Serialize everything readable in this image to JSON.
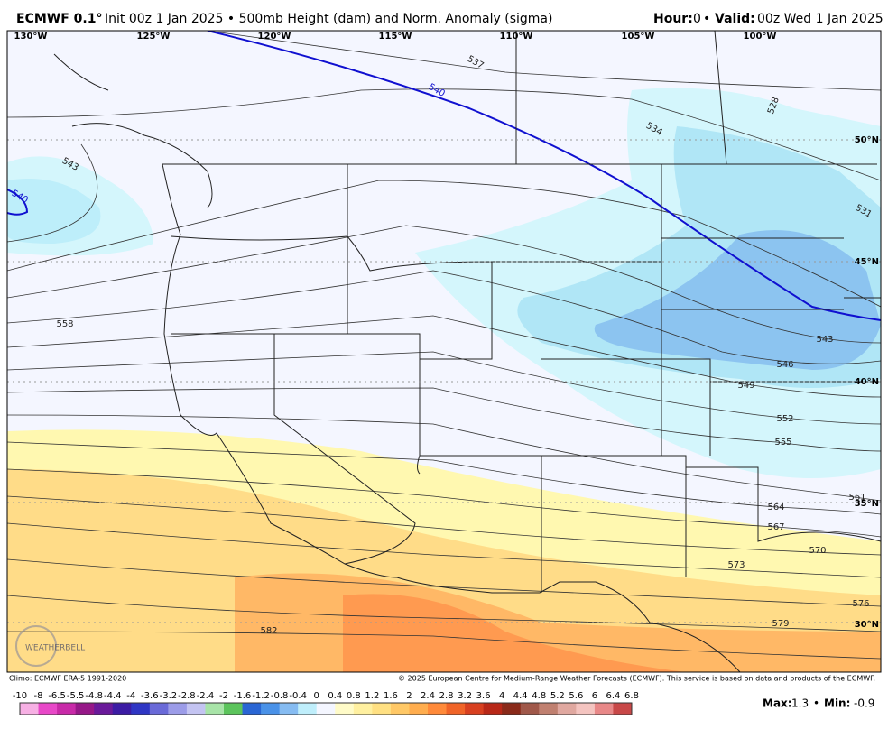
{
  "header": {
    "model": "ECMWF 0.1°",
    "init": "Init 00z 1 Jan 2025 • 500mb Height (dam) and Norm. Anomaly (sigma)",
    "hour_label": "Hour:",
    "hour": "0",
    "separator": "•",
    "valid_label": "Valid:",
    "valid": "00z Wed 1 Jan 2025"
  },
  "map": {
    "longitudes": [
      "130°W",
      "125°W",
      "120°W",
      "115°W",
      "110°W",
      "105°W",
      "100°W"
    ],
    "latitudes": [
      "50°N",
      "45°N",
      "40°N",
      "35°N",
      "30°N"
    ],
    "contour_labels": [
      537,
      540,
      534,
      528,
      543,
      540,
      531,
      558,
      543,
      546,
      549,
      552,
      555,
      561,
      564,
      567,
      570,
      573,
      576,
      579,
      582
    ],
    "logo": "WEATHERBELL"
  },
  "footer": {
    "climo": "Climo: ECMWF ERA-5 1991-2020",
    "copyright": "© 2025 European Centre for Medium-Range Weather Forecasts (ECMWF). This service is based on data and products of the ECMWF."
  },
  "colorbar": {
    "labels": [
      -10,
      -8,
      -6.5,
      -5.5,
      -4.8,
      -4.4,
      -4,
      -3.6,
      -3.2,
      -2.8,
      -2.4,
      -2,
      -1.6,
      -1.2,
      -0.8,
      -0.4,
      0,
      0.4,
      0.8,
      1.2,
      1.6,
      2,
      2.4,
      2.8,
      3.2,
      3.6,
      4,
      4.4,
      4.8,
      5.2,
      5.6,
      6,
      6.4,
      6.8
    ],
    "colors": [
      "#f7b0e4",
      "#e848c8",
      "#c82aa8",
      "#961888",
      "#6a1a9a",
      "#3c1ca4",
      "#2f36c4",
      "#6a6ad8",
      "#9c9ce8",
      "#c4c4f2",
      "#a8e4a8",
      "#5cc45c",
      "#2a66d4",
      "#4a92e8",
      "#86bcf2",
      "#bfeefb",
      "#f4f6ff",
      "#fffbc8",
      "#fff0a0",
      "#ffe082",
      "#ffc866",
      "#ffad4e",
      "#ff8a3a",
      "#f06428",
      "#d84020",
      "#b82818",
      "#8a2a1a",
      "#a0584a",
      "#c08070",
      "#e0a8a0",
      "#f4c4c0",
      "#e88888",
      "#c84848"
    ],
    "max_label": "Max:",
    "max": 1.3,
    "min_label": "Min:",
    "min": -0.9
  }
}
